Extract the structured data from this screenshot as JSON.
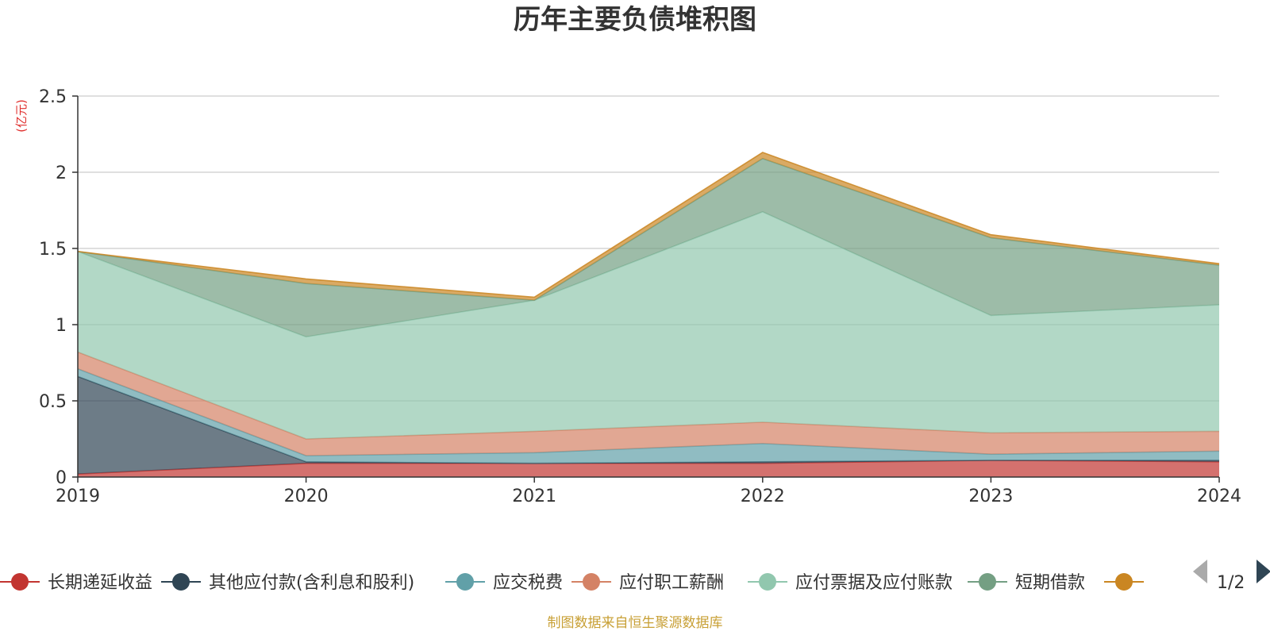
{
  "chart_data": {
    "type": "area",
    "stacked": true,
    "title": "历年主要负债堆积图",
    "unit_label": "(亿元)",
    "x": [
      "2019",
      "2020",
      "2021",
      "2022",
      "2023",
      "2024"
    ],
    "ylim": [
      0,
      2.5
    ],
    "yticks": [
      "0",
      "0.5",
      "1",
      "1.5",
      "2",
      "2.5"
    ],
    "grid": true,
    "legend_position": "bottom",
    "series": [
      {
        "name": "长期递延收益",
        "color": "#c23531",
        "values": [
          0.02,
          0.09,
          0.09,
          0.09,
          0.11,
          0.1
        ]
      },
      {
        "name": "其他应付款(含利息和股利)",
        "color": "#2f4554",
        "values": [
          0.64,
          0.01,
          0.0,
          0.01,
          0.0,
          0.01
        ]
      },
      {
        "name": "应交税费",
        "color": "#61a0a8",
        "values": [
          0.05,
          0.04,
          0.07,
          0.12,
          0.04,
          0.06
        ]
      },
      {
        "name": "应付职工薪酬",
        "color": "#d48265",
        "values": [
          0.11,
          0.11,
          0.14,
          0.14,
          0.14,
          0.13
        ]
      },
      {
        "name": "应付票据及应付账款",
        "color": "#91c7ae",
        "values": [
          0.66,
          0.67,
          0.86,
          1.38,
          0.77,
          0.83
        ]
      },
      {
        "name": "短期借款",
        "color": "#749f83",
        "values": [
          0.0,
          0.35,
          0.0,
          0.35,
          0.51,
          0.26
        ]
      },
      {
        "name": "",
        "color": "#ca8622",
        "values": [
          0.0,
          0.03,
          0.02,
          0.04,
          0.02,
          0.01
        ]
      }
    ]
  },
  "legend": {
    "items": [
      {
        "label": "长期递延收益",
        "color": "#c23531"
      },
      {
        "label": "其他应付款(含利息和股利)",
        "color": "#2f4554"
      },
      {
        "label": "应交税费",
        "color": "#61a0a8"
      },
      {
        "label": "应付职工薪酬",
        "color": "#d48265"
      },
      {
        "label": "应付票据及应付账款",
        "color": "#91c7ae"
      },
      {
        "label": "短期借款",
        "color": "#749f83"
      },
      {
        "label": "",
        "color": "#ca8622"
      }
    ],
    "page_indicator": "1/2"
  },
  "footer": {
    "source": "制图数据来自恒生聚源数据库"
  }
}
